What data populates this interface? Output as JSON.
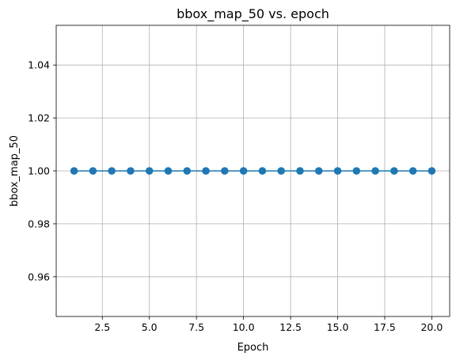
{
  "chart_data": {
    "type": "line",
    "title": "bbox_map_50 vs. epoch",
    "xlabel": "Epoch",
    "ylabel": "bbox_map_50",
    "x": [
      1,
      2,
      3,
      4,
      5,
      6,
      7,
      8,
      9,
      10,
      11,
      12,
      13,
      14,
      15,
      16,
      17,
      18,
      19,
      20
    ],
    "series": [
      {
        "values": [
          1.0,
          1.0,
          1.0,
          1.0,
          1.0,
          1.0,
          1.0,
          1.0,
          1.0,
          1.0,
          1.0,
          1.0,
          1.0,
          1.0,
          1.0,
          1.0,
          1.0,
          1.0,
          1.0,
          1.0
        ]
      }
    ],
    "xlim": [
      0.05,
      20.95
    ],
    "ylim": [
      0.945,
      1.055
    ],
    "xticks": [
      2.5,
      5.0,
      7.5,
      10.0,
      12.5,
      15.0,
      17.5,
      20.0
    ],
    "xtick_labels": [
      "2.5",
      "5.0",
      "7.5",
      "10.0",
      "12.5",
      "15.0",
      "17.5",
      "20.0"
    ],
    "yticks": [
      0.96,
      0.98,
      1.0,
      1.02,
      1.04
    ],
    "ytick_labels": [
      "0.96",
      "0.98",
      "1.00",
      "1.02",
      "1.04"
    ],
    "grid": true,
    "marker": "circle",
    "line_color": "#1f77b4",
    "grid_color": "#b0b0b0"
  }
}
